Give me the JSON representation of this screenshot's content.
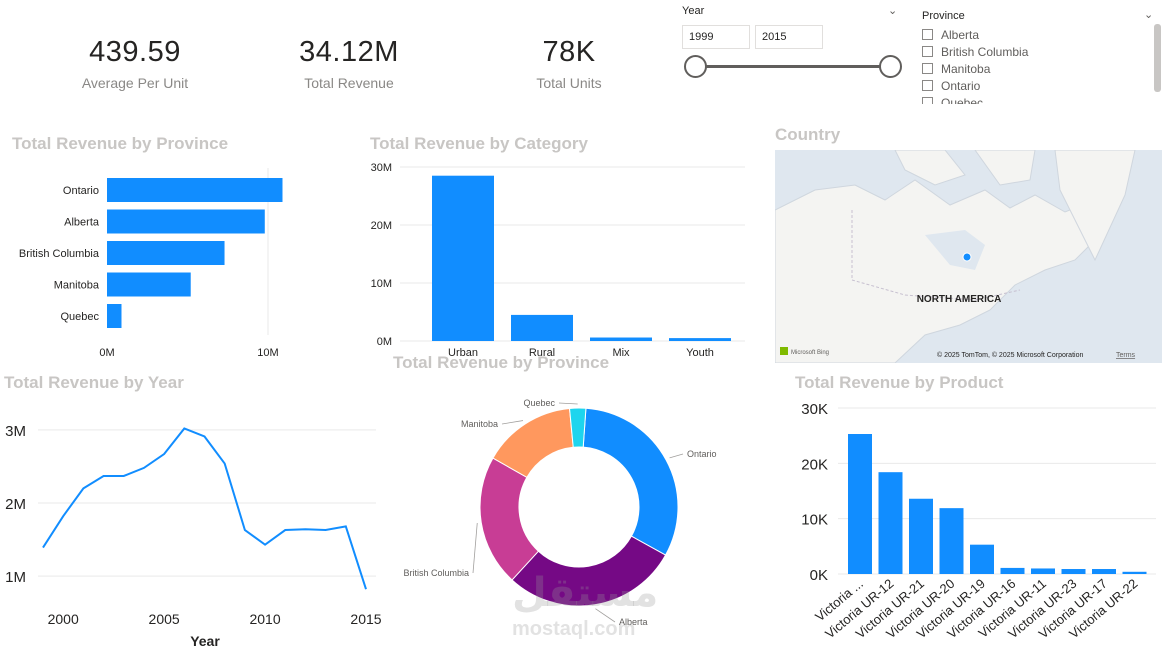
{
  "kpis": [
    {
      "value": "439.59",
      "label": "Average Per Unit"
    },
    {
      "value": "34.12M",
      "label": "Total Revenue"
    },
    {
      "value": "78K",
      "label": "Total Units"
    }
  ],
  "year_slicer": {
    "title": "Year",
    "from": "1999",
    "to": "2015",
    "range_fraction": [
      0,
      1
    ]
  },
  "province_slicer": {
    "title": "Province",
    "options": [
      "Alberta",
      "British Columbia",
      "Manitoba",
      "Ontario",
      "Quebec"
    ]
  },
  "map": {
    "title": "Country",
    "label": "NORTH AMERICA",
    "brand": "Microsoft Bing",
    "copyright": "© 2025 TomTom, © 2025 Microsoft Corporation",
    "terms": "Terms"
  },
  "watermark": {
    "arabic": "مستقل",
    "latin": "mostaql.com"
  },
  "colors": {
    "blue": "#118DFF",
    "purple": "#750985",
    "magenta": "#C83D95",
    "orange": "#FF985E",
    "cyan": "#1DD5EE",
    "grid": "#e9e9e9"
  },
  "chart_data": [
    {
      "id": "province_bar",
      "type": "bar",
      "orientation": "horizontal",
      "title": "Total Revenue by Province",
      "categories": [
        "Ontario",
        "Alberta",
        "British Columbia",
        "Manitoba",
        "Quebec"
      ],
      "values": [
        10.9,
        9.8,
        7.3,
        5.2,
        0.9
      ],
      "xlim": [
        0,
        12
      ],
      "xticks": [
        0,
        10
      ],
      "tick_labels": [
        "0M",
        "10M"
      ],
      "unit": "M"
    },
    {
      "id": "category_bar",
      "type": "bar",
      "title": "Total Revenue by Category",
      "categories": [
        "Urban",
        "Rural",
        "Mix",
        "Youth"
      ],
      "values": [
        28.5,
        4.5,
        0.6,
        0.5
      ],
      "ylim": [
        0,
        30
      ],
      "yticks": [
        0,
        10,
        20,
        30
      ],
      "tick_labels": [
        "0M",
        "10M",
        "20M",
        "30M"
      ]
    },
    {
      "id": "year_line",
      "type": "line",
      "title": "Total Revenue by Year",
      "xlabel": "Year",
      "x": [
        1999,
        2000,
        2001,
        2002,
        2003,
        2004,
        2005,
        2006,
        2007,
        2008,
        2009,
        2010,
        2011,
        2012,
        2013,
        2014,
        2015
      ],
      "values": [
        1.39,
        1.82,
        2.2,
        2.37,
        2.37,
        2.48,
        2.67,
        3.02,
        2.91,
        2.54,
        1.63,
        1.43,
        1.63,
        1.64,
        1.63,
        1.68,
        0.82
      ],
      "xticks": [
        2000,
        2005,
        2010,
        2015
      ],
      "yticks": [
        1,
        2,
        3
      ],
      "tick_labels": [
        "1M",
        "2M",
        "3M"
      ],
      "ylim": [
        0.7,
        3.3
      ]
    },
    {
      "id": "province_donut",
      "type": "pie",
      "title": "Total Revenue by Province",
      "categories": [
        "Ontario",
        "Alberta",
        "British Columbia",
        "Manitoba",
        "Quebec"
      ],
      "values": [
        10.9,
        9.8,
        7.3,
        5.2,
        0.9
      ],
      "colors": [
        "#118DFF",
        "#750985",
        "#C83D95",
        "#FF985E",
        "#1DD5EE"
      ]
    },
    {
      "id": "product_bar",
      "type": "bar",
      "title": "Total Revenue by Product",
      "categories": [
        "Victoria ...",
        "Victoria UR-12",
        "Victoria UR-21",
        "Victoria UR-20",
        "Victoria UR-19",
        "Victoria UR-16",
        "Victoria UR-11",
        "Victoria UR-23",
        "Victoria UR-17",
        "Victoria UR-22"
      ],
      "values": [
        25300,
        18400,
        13600,
        11900,
        5300,
        1100,
        1000,
        900,
        900,
        400
      ],
      "ylim": [
        0,
        30000
      ],
      "yticks": [
        0,
        10000,
        20000,
        30000
      ],
      "tick_labels": [
        "0K",
        "10K",
        "20K",
        "30K"
      ]
    }
  ]
}
